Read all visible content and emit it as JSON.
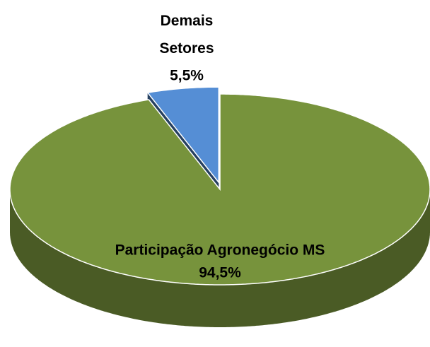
{
  "chart_data": {
    "type": "pie",
    "categories": [
      "Participação Agronegócio MS",
      "Demais Setores"
    ],
    "values": [
      94.5,
      5.5
    ],
    "value_labels": [
      "94,5%",
      "5,5%"
    ],
    "colors": [
      "#77933c",
      "#558ed5"
    ]
  }
}
